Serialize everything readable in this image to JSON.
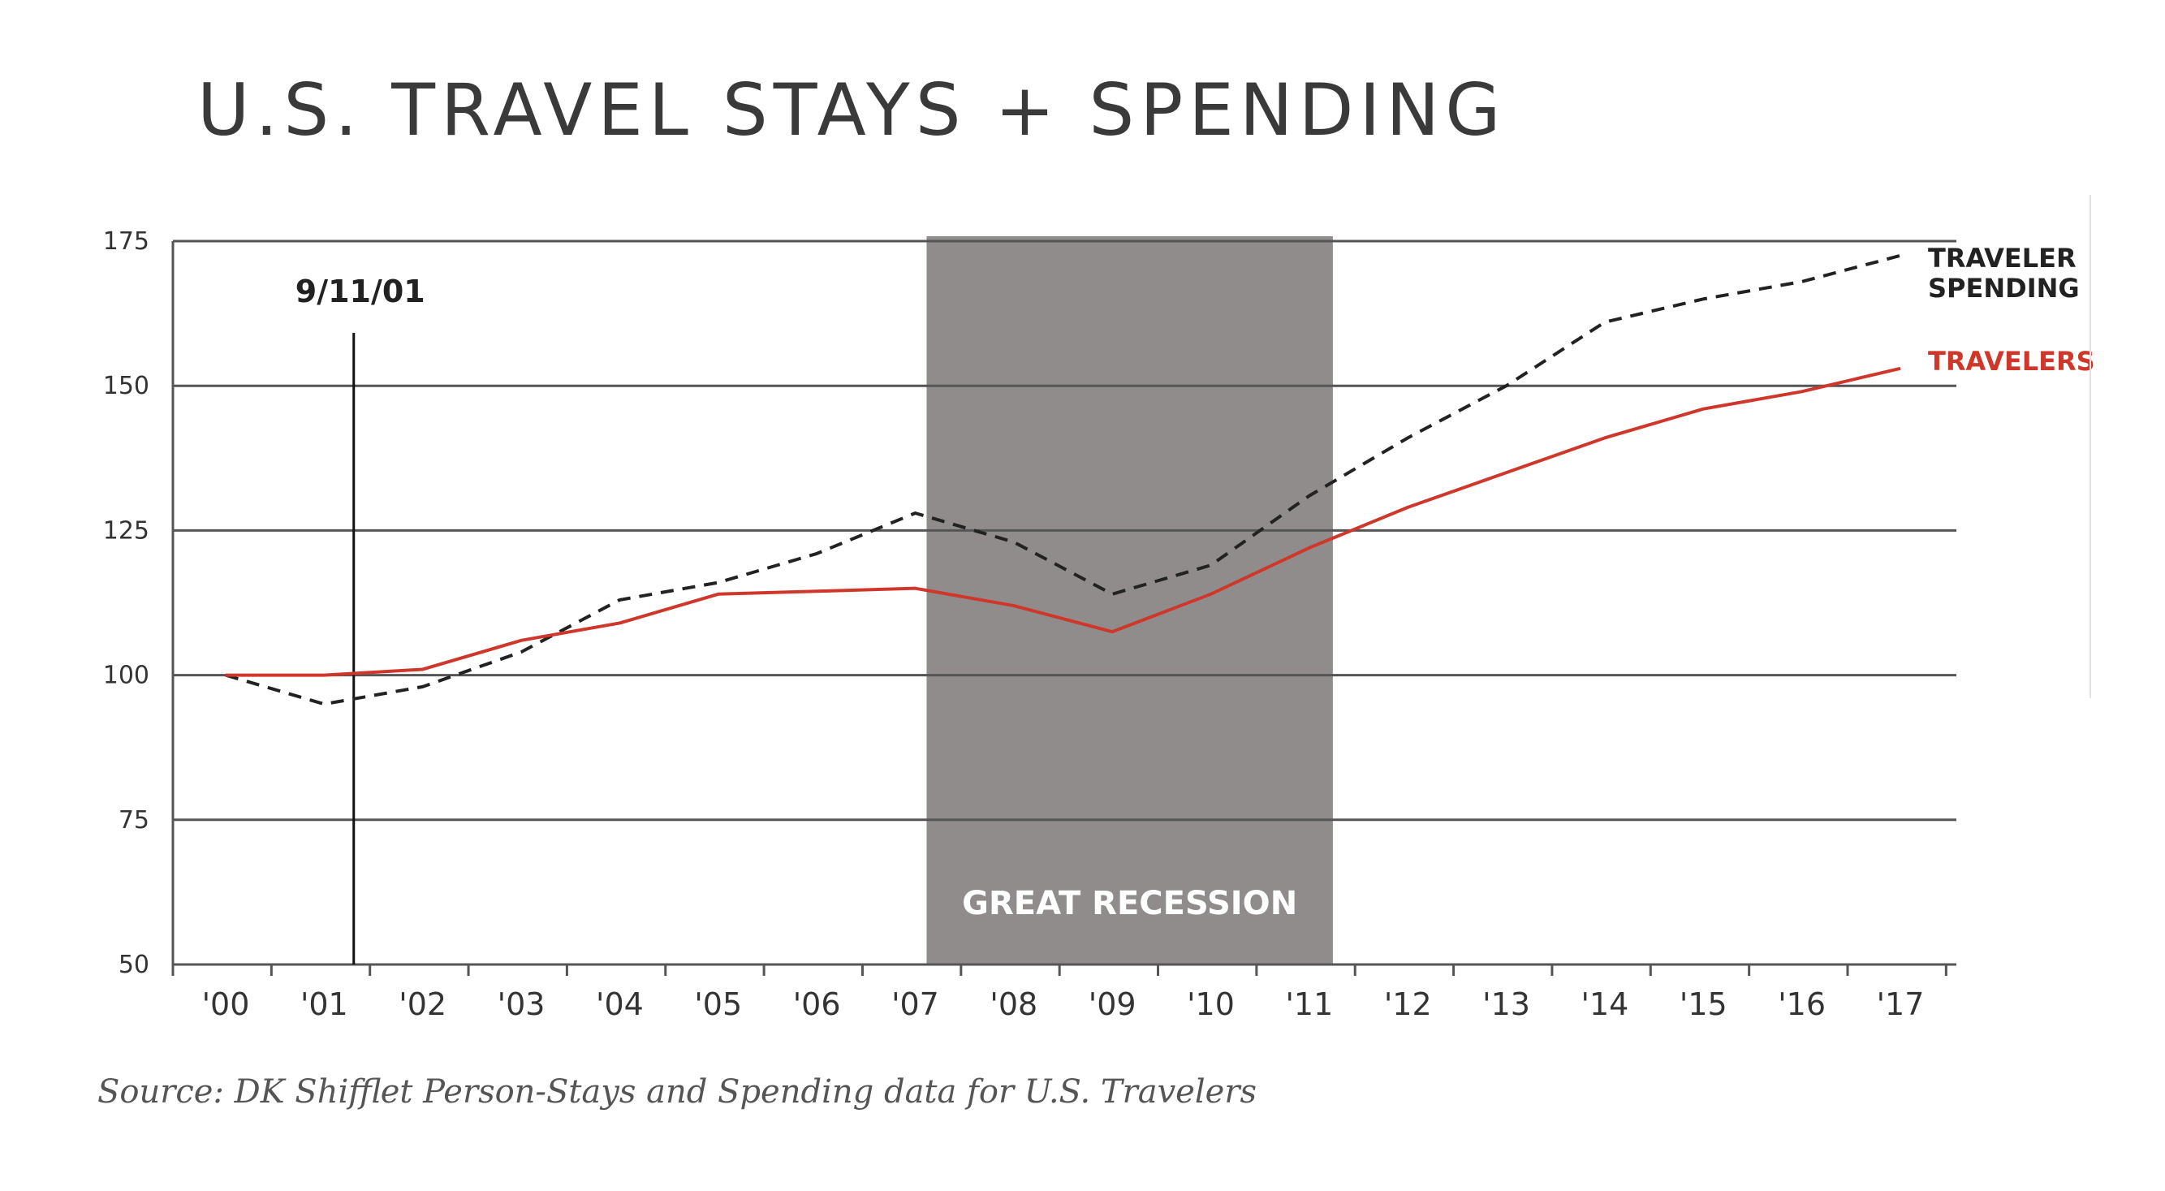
{
  "title": "U.S. TRAVEL STAYS + SPENDING",
  "source": "Source: DK Shifflet Person-Stays and Spending data for U.S. Travelers",
  "colors": {
    "travelers": "#d0372b",
    "spending": "#222222",
    "grid": "#555555",
    "recession": "#8f8c8b",
    "recession_text": "#ffffff"
  },
  "chart_data": {
    "type": "line",
    "title": "U.S. TRAVEL STAYS + SPENDING",
    "xlabel": "",
    "ylabel": "",
    "ylim": [
      50,
      175
    ],
    "yticks": [
      "175",
      "150",
      "125",
      "100",
      "75",
      "50"
    ],
    "categories": [
      "'00",
      "'01",
      "'02",
      "'03",
      "'04",
      "'05",
      "'06",
      "'07",
      "'08",
      "'09",
      "'10",
      "'11",
      "'12",
      "'13",
      "'14",
      "'15",
      "'16",
      "'17"
    ],
    "grid": true,
    "legend": "right (direct labels at line ends)",
    "series": [
      {
        "name": "TRAVELER SPENDING",
        "style": "dashed",
        "color": "#222222",
        "values": [
          100,
          95,
          98,
          104,
          113,
          116,
          121,
          128,
          123,
          114,
          119,
          131,
          141,
          150,
          161,
          165,
          168,
          172.5
        ]
      },
      {
        "name": "TRAVELERS",
        "style": "solid",
        "color": "#d0372b",
        "values": [
          100,
          100,
          101,
          106,
          109,
          114,
          114.5,
          115,
          112,
          107.5,
          114,
          122,
          129,
          135,
          141,
          146,
          149,
          153
        ]
      }
    ],
    "annotations": [
      {
        "label": "9/11/01",
        "x": 2001.3,
        "type": "vertical-line"
      },
      {
        "label": "GREAT RECESSION",
        "x_start": 2007,
        "x_end": 2011,
        "type": "shaded-band"
      }
    ]
  }
}
